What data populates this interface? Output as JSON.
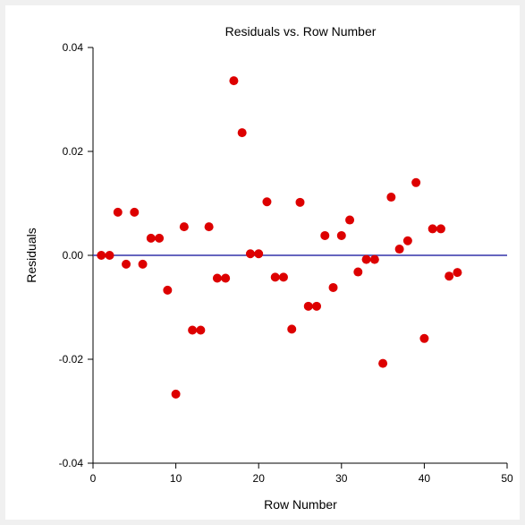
{
  "chart_data": {
    "type": "scatter",
    "title": "Residuals vs. Row Number",
    "xlabel": "Row Number",
    "ylabel": "Residuals",
    "xlim": [
      0,
      50
    ],
    "ylim": [
      -0.04,
      0.04
    ],
    "x_ticks": [
      "0",
      "10",
      "20",
      "30",
      "40",
      "50"
    ],
    "y_ticks": [
      "-0.04",
      "-0.02",
      "0.00",
      "0.02",
      "0.04"
    ],
    "reference_line": {
      "y": 0,
      "color": "#3333aa"
    },
    "marker_color": "#dd0000",
    "grid": false,
    "points": [
      {
        "x": 1,
        "y": 0.0
      },
      {
        "x": 2,
        "y": 0.0
      },
      {
        "x": 3,
        "y": 0.0083
      },
      {
        "x": 4,
        "y": -0.0017
      },
      {
        "x": 5,
        "y": 0.0083
      },
      {
        "x": 6,
        "y": -0.0017
      },
      {
        "x": 7,
        "y": 0.0033
      },
      {
        "x": 8,
        "y": 0.0033
      },
      {
        "x": 9,
        "y": -0.0067
      },
      {
        "x": 10,
        "y": -0.0267
      },
      {
        "x": 11,
        "y": 0.0055
      },
      {
        "x": 12,
        "y": -0.0144
      },
      {
        "x": 13,
        "y": -0.0144
      },
      {
        "x": 14,
        "y": 0.0055
      },
      {
        "x": 15,
        "y": -0.0044
      },
      {
        "x": 16,
        "y": -0.0044
      },
      {
        "x": 17,
        "y": 0.0336
      },
      {
        "x": 18,
        "y": 0.0236
      },
      {
        "x": 19,
        "y": 0.0003
      },
      {
        "x": 20,
        "y": 0.0003
      },
      {
        "x": 21,
        "y": 0.0103
      },
      {
        "x": 22,
        "y": -0.0042
      },
      {
        "x": 23,
        "y": -0.0042
      },
      {
        "x": 24,
        "y": -0.0142
      },
      {
        "x": 25,
        "y": 0.0102
      },
      {
        "x": 26,
        "y": -0.0098
      },
      {
        "x": 27,
        "y": -0.0098
      },
      {
        "x": 28,
        "y": 0.0038
      },
      {
        "x": 29,
        "y": -0.0062
      },
      {
        "x": 30,
        "y": 0.0038
      },
      {
        "x": 31,
        "y": 0.0068
      },
      {
        "x": 32,
        "y": -0.0032
      },
      {
        "x": 33,
        "y": -0.0008
      },
      {
        "x": 34,
        "y": -0.0008
      },
      {
        "x": 35,
        "y": -0.0208
      },
      {
        "x": 36,
        "y": 0.0112
      },
      {
        "x": 37,
        "y": 0.0012
      },
      {
        "x": 38,
        "y": 0.0028
      },
      {
        "x": 39,
        "y": 0.014
      },
      {
        "x": 40,
        "y": -0.016
      },
      {
        "x": 41,
        "y": 0.0051
      },
      {
        "x": 42,
        "y": 0.0051
      },
      {
        "x": 43,
        "y": -0.004
      },
      {
        "x": 44,
        "y": -0.0033
      }
    ]
  }
}
